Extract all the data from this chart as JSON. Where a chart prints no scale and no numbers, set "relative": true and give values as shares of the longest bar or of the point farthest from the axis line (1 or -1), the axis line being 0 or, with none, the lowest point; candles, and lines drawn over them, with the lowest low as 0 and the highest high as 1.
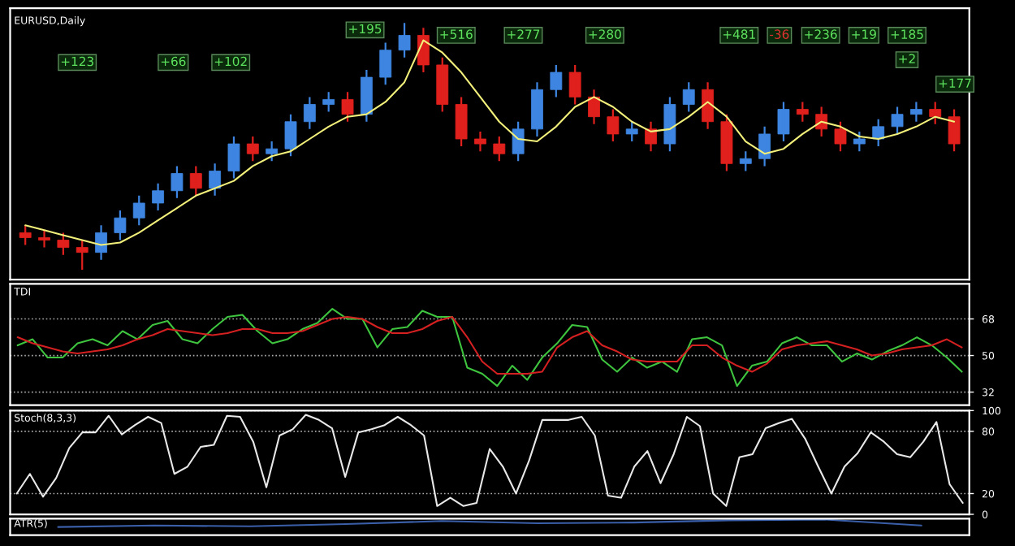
{
  "chart_data": [
    {
      "type": "candlestick",
      "title": "EURUSD,Daily",
      "relative": true,
      "categories": [
        null,
        null,
        null,
        null,
        null,
        null,
        null,
        null,
        null,
        null,
        null,
        null,
        null,
        null,
        null,
        null,
        null,
        null,
        null,
        null,
        null,
        null,
        null,
        null,
        null,
        null,
        null,
        null,
        null,
        null,
        null,
        null,
        null,
        null,
        null,
        null,
        null,
        null,
        null,
        null,
        null,
        null,
        null,
        null,
        null,
        null,
        null,
        null,
        null,
        null
      ],
      "ohlc": [
        [
          0.15,
          0.18,
          0.1,
          0.13
        ],
        [
          0.13,
          0.16,
          0.09,
          0.12
        ],
        [
          0.12,
          0.15,
          0.06,
          0.09
        ],
        [
          0.09,
          0.12,
          0,
          0.07
        ],
        [
          0.07,
          0.18,
          0.04,
          0.15
        ],
        [
          0.15,
          0.24,
          0.12,
          0.21
        ],
        [
          0.21,
          0.3,
          0.18,
          0.27
        ],
        [
          0.27,
          0.35,
          0.24,
          0.32
        ],
        [
          0.32,
          0.42,
          0.29,
          0.39
        ],
        [
          0.39,
          0.42,
          0.3,
          0.33
        ],
        [
          0.33,
          0.43,
          0.3,
          0.4
        ],
        [
          0.4,
          0.54,
          0.37,
          0.51
        ],
        [
          0.51,
          0.54,
          0.44,
          0.47
        ],
        [
          0.47,
          0.52,
          0.44,
          0.49
        ],
        [
          0.49,
          0.63,
          0.46,
          0.6
        ],
        [
          0.6,
          0.7,
          0.57,
          0.67
        ],
        [
          0.67,
          0.72,
          0.64,
          0.69
        ],
        [
          0.69,
          0.72,
          0.6,
          0.63
        ],
        [
          0.63,
          0.81,
          0.6,
          0.78
        ],
        [
          0.78,
          0.92,
          0.75,
          0.89
        ],
        [
          0.89,
          1,
          0.86,
          0.95
        ],
        [
          0.95,
          0.98,
          0.8,
          0.83
        ],
        [
          0.83,
          0.86,
          0.64,
          0.67
        ],
        [
          0.67,
          0.7,
          0.5,
          0.53
        ],
        [
          0.53,
          0.56,
          0.48,
          0.51
        ],
        [
          0.51,
          0.54,
          0.44,
          0.47
        ],
        [
          0.47,
          0.6,
          0.44,
          0.57
        ],
        [
          0.57,
          0.76,
          0.54,
          0.73
        ],
        [
          0.73,
          0.83,
          0.7,
          0.8
        ],
        [
          0.8,
          0.83,
          0.67,
          0.7
        ],
        [
          0.7,
          0.73,
          0.59,
          0.62
        ],
        [
          0.62,
          0.65,
          0.52,
          0.55
        ],
        [
          0.55,
          0.6,
          0.52,
          0.57
        ],
        [
          0.57,
          0.6,
          0.48,
          0.51
        ],
        [
          0.51,
          0.7,
          0.48,
          0.67
        ],
        [
          0.67,
          0.76,
          0.64,
          0.73
        ],
        [
          0.73,
          0.76,
          0.57,
          0.6
        ],
        [
          0.6,
          0.63,
          0.4,
          0.43
        ],
        [
          0.43,
          0.48,
          0.4,
          0.45
        ],
        [
          0.45,
          0.58,
          0.42,
          0.55
        ],
        [
          0.55,
          0.68,
          0.52,
          0.65
        ],
        [
          0.65,
          0.68,
          0.6,
          0.63
        ],
        [
          0.63,
          0.66,
          0.54,
          0.57
        ],
        [
          0.57,
          0.6,
          0.48,
          0.51
        ],
        [
          0.51,
          0.56,
          0.48,
          0.53
        ],
        [
          0.53,
          0.61,
          0.5,
          0.58
        ],
        [
          0.58,
          0.66,
          0.55,
          0.63
        ],
        [
          0.63,
          0.68,
          0.6,
          0.65
        ],
        [
          0.65,
          0.68,
          0.59,
          0.62
        ],
        [
          0.62,
          0.65,
          0.48,
          0.51
        ]
      ],
      "colors": [
        "#e0201c",
        "#e0201c",
        "#e0201c",
        "#e0201c",
        "#3d85e0",
        "#3d85e0",
        "#3d85e0",
        "#3d85e0",
        "#3d85e0",
        "#e0201c",
        "#3d85e0",
        "#3d85e0",
        "#e0201c",
        "#3d85e0",
        "#3d85e0",
        "#3d85e0",
        "#3d85e0",
        "#e0201c",
        "#3d85e0",
        "#3d85e0",
        "#3d85e0",
        "#e0201c",
        "#e0201c",
        "#e0201c",
        "#e0201c",
        "#e0201c",
        "#3d85e0",
        "#3d85e0",
        "#3d85e0",
        "#e0201c",
        "#e0201c",
        "#e0201c",
        "#3d85e0",
        "#e0201c",
        "#3d85e0",
        "#3d85e0",
        "#e0201c",
        "#e0201c",
        "#3d85e0",
        "#3d85e0",
        "#3d85e0",
        "#e0201c",
        "#e0201c",
        "#e0201c",
        "#3d85e0",
        "#3d85e0",
        "#3d85e0",
        "#3d85e0",
        "#e0201c",
        "#e0201c"
      ],
      "series": [
        {
          "type": "line",
          "color": "#f2f07a",
          "values": [
            0.18,
            0.16,
            0.14,
            0.12,
            0.1,
            0.11,
            0.15,
            0.2,
            0.25,
            0.3,
            0.33,
            0.36,
            0.42,
            0.46,
            0.48,
            0.53,
            0.58,
            0.62,
            0.63,
            0.68,
            0.76,
            0.93,
            0.88,
            0.8,
            0.7,
            0.6,
            0.53,
            0.52,
            0.58,
            0.66,
            0.7,
            0.66,
            0.6,
            0.56,
            0.57,
            0.62,
            0.68,
            0.62,
            0.52,
            0.47,
            0.49,
            0.55,
            0.6,
            0.58,
            0.54,
            0.53,
            0.55,
            0.58,
            0.62,
            0.6
          ]
        }
      ],
      "annotations": [
        "+123",
        "+66",
        "+102",
        "+195",
        "+516",
        "+277",
        "+280",
        "+481",
        "-36",
        "+236",
        "+19",
        "+185",
        "+2",
        "+177"
      ]
    },
    {
      "type": "line",
      "title": "TDI",
      "ylim": [
        25.5846,
        85.2275
      ],
      "yticks": [
        32,
        50,
        68
      ],
      "grid": "y",
      "categories": [
        null,
        null,
        null,
        null,
        null,
        null,
        null,
        null,
        null,
        null,
        null,
        null,
        null,
        null,
        null,
        null,
        null,
        null,
        null,
        null,
        null,
        null,
        null,
        null,
        null,
        null,
        null,
        null,
        null,
        null,
        null,
        null,
        null,
        null,
        null,
        null,
        null,
        null,
        null,
        null,
        null,
        null,
        null,
        null,
        null,
        null,
        null,
        null,
        null,
        null,
        null,
        null,
        null,
        null,
        null,
        null,
        null,
        null,
        null,
        null,
        null,
        null,
        null,
        null
      ],
      "series": [
        {
          "color": "#3ec43e",
          "values": [
            55,
            58,
            49,
            49,
            56,
            58,
            55,
            62,
            58,
            65,
            67,
            58,
            56,
            63,
            69,
            70,
            62,
            56,
            58,
            63,
            66,
            73,
            68,
            68,
            54,
            63,
            64,
            72,
            69,
            69,
            44,
            41,
            35,
            45,
            38,
            49,
            56,
            65,
            64,
            48,
            42,
            49,
            44,
            47,
            42,
            58,
            59,
            55,
            35,
            45,
            47,
            56,
            59,
            55,
            55,
            47,
            51,
            48,
            52,
            55,
            59,
            55,
            49,
            42
          ]
        },
        {
          "color": "#d42020",
          "values": [
            59,
            56,
            54,
            52,
            51,
            52,
            53,
            55,
            58,
            60,
            63,
            62,
            61,
            60,
            61,
            63,
            63,
            61,
            61,
            62,
            65,
            68,
            69,
            68,
            64,
            61,
            61,
            63,
            67,
            69,
            59,
            47,
            41,
            41,
            41,
            42,
            54,
            59,
            62,
            55,
            52,
            48,
            47,
            47,
            47,
            55,
            55,
            49,
            45,
            42,
            46,
            53,
            55,
            56,
            57,
            55,
            53,
            50,
            51,
            53,
            54,
            55,
            58,
            54
          ]
        }
      ]
    },
    {
      "type": "line",
      "title": "Stoch(8,3,3)",
      "ylim": [
        0,
        100
      ],
      "yticks": [
        0,
        20,
        80,
        100
      ],
      "grid": "y",
      "categories": [
        null,
        null,
        null,
        null,
        null,
        null,
        null,
        null,
        null,
        null,
        null,
        null,
        null,
        null,
        null,
        null,
        null,
        null,
        null,
        null,
        null,
        null,
        null,
        null,
        null,
        null,
        null,
        null,
        null,
        null,
        null,
        null,
        null,
        null,
        null,
        null,
        null,
        null,
        null,
        null,
        null,
        null,
        null,
        null,
        null,
        null,
        null,
        null,
        null,
        null,
        null,
        null,
        null,
        null,
        null,
        null,
        null,
        null,
        null,
        null,
        null,
        null,
        null,
        null,
        null,
        null,
        null,
        null,
        null,
        null,
        null,
        null,
        null
      ],
      "series": [
        {
          "color": "#e8e8e8",
          "values": [
            20,
            39,
            17,
            35,
            64,
            79,
            79,
            95,
            77,
            86,
            94,
            88,
            39,
            46,
            65,
            67,
            95,
            94,
            70,
            26,
            76,
            82,
            96,
            91,
            83,
            36,
            79,
            82,
            86,
            94,
            86,
            76,
            8,
            16,
            8,
            11,
            63,
            46,
            20,
            52,
            91,
            91,
            91,
            94,
            76,
            18,
            16,
            46,
            61,
            30,
            58,
            94,
            85,
            20,
            8,
            55,
            58,
            83,
            88,
            92,
            73,
            46,
            20,
            46,
            59,
            79,
            70,
            58,
            55,
            70,
            89,
            29,
            11
          ]
        }
      ]
    },
    {
      "type": "line",
      "title": "ATR(5)",
      "relative": true,
      "categories": [
        null,
        null,
        null,
        null,
        null,
        null,
        null,
        null,
        null,
        null
      ],
      "series": [
        {
          "color": "#3a5fa8",
          "values": [
            0.5,
            0.6,
            0.55,
            0.7,
            0.9,
            0.75,
            0.8,
            0.95,
            1,
            0.6
          ]
        }
      ]
    }
  ]
}
